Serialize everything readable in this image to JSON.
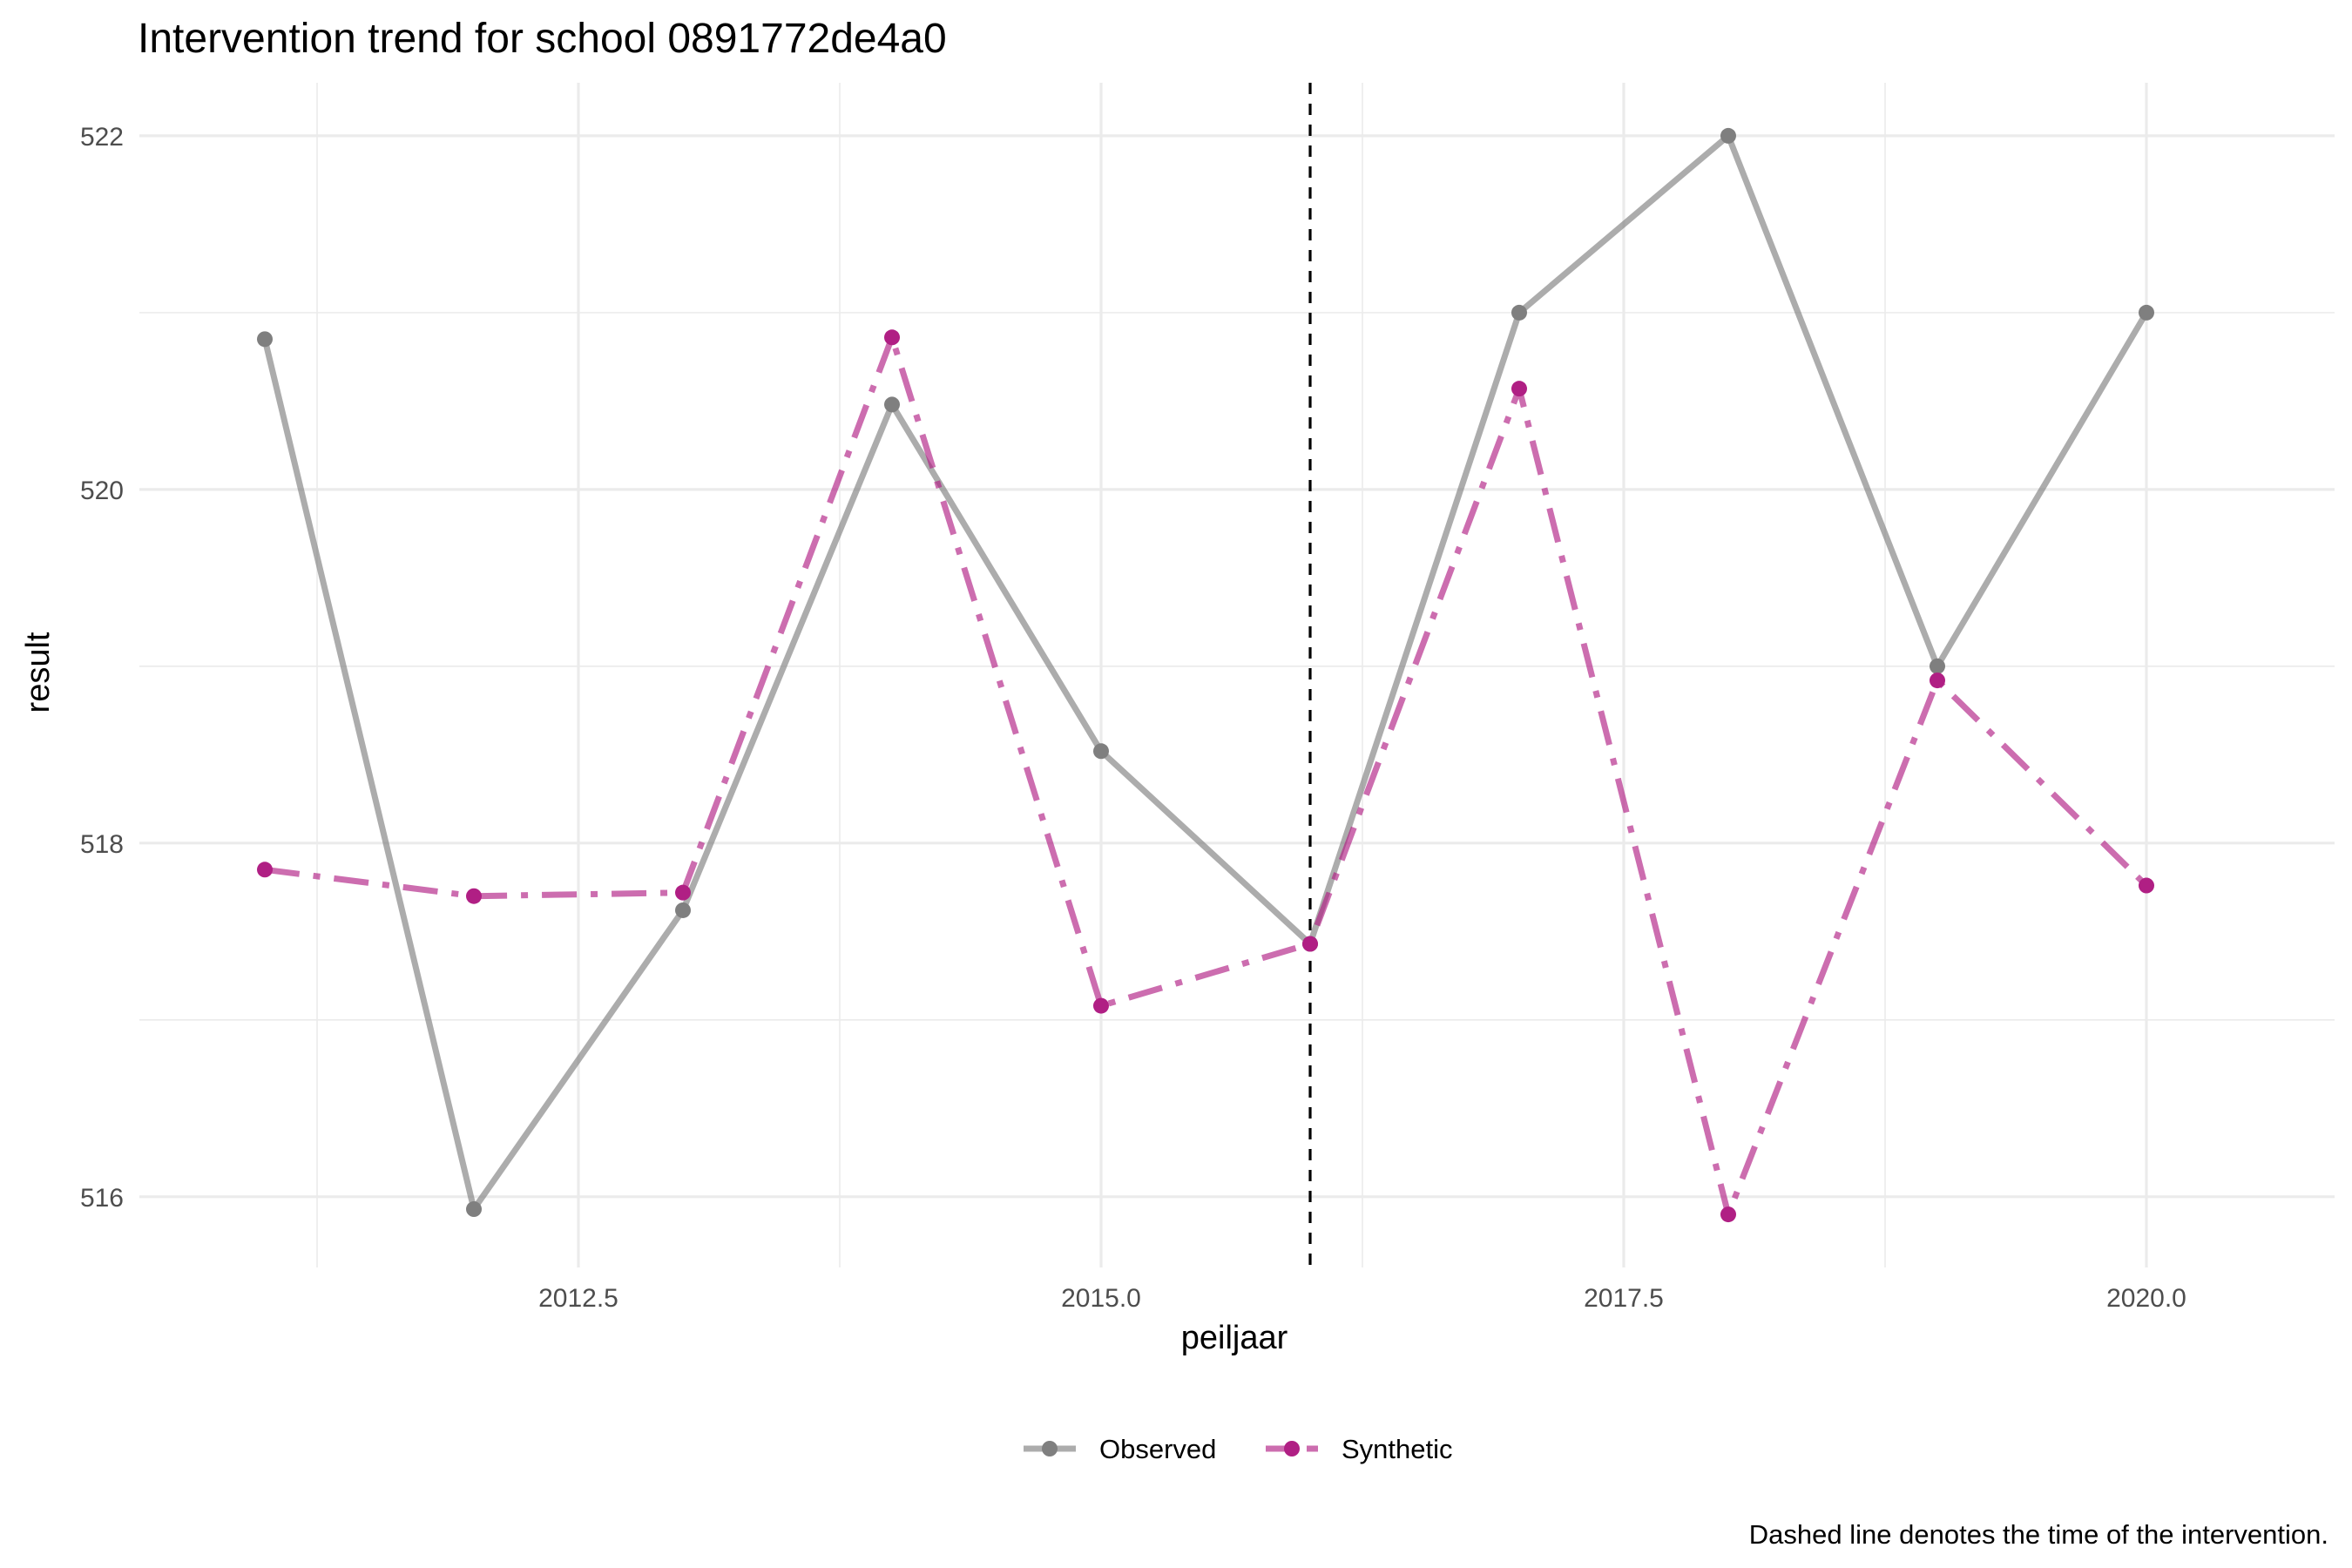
{
  "chart_data": {
    "type": "line",
    "title": "Intervention trend for school 0891772de4a0",
    "xlabel": "peiljaar",
    "ylabel": "result",
    "x": [
      2011,
      2012,
      2013,
      2014,
      2015,
      2016,
      2017,
      2018,
      2019,
      2020
    ],
    "xlim": [
      2010.4,
      2020.9
    ],
    "ylim": [
      515.6,
      522.3
    ],
    "x_ticks": [
      "2012.5",
      "2015.0",
      "2017.5",
      "2020.0"
    ],
    "y_ticks": [
      "516",
      "518",
      "520",
      "522"
    ],
    "grid": true,
    "legend_position": "bottom",
    "intervention_x": 2016,
    "series": [
      {
        "name": "Observed",
        "color": "#7f7f7f",
        "line_style": "solid",
        "values": [
          520.85,
          515.93,
          517.62,
          520.48,
          518.52,
          517.43,
          521.0,
          522.0,
          519.0,
          521.0
        ]
      },
      {
        "name": "Synthetic",
        "color": "#b01f84",
        "line_style": "dotdash",
        "values": [
          517.85,
          517.7,
          517.72,
          520.86,
          517.08,
          517.43,
          520.57,
          515.9,
          518.92,
          517.76
        ]
      }
    ],
    "caption": "Dashed line denotes the time of the intervention."
  }
}
